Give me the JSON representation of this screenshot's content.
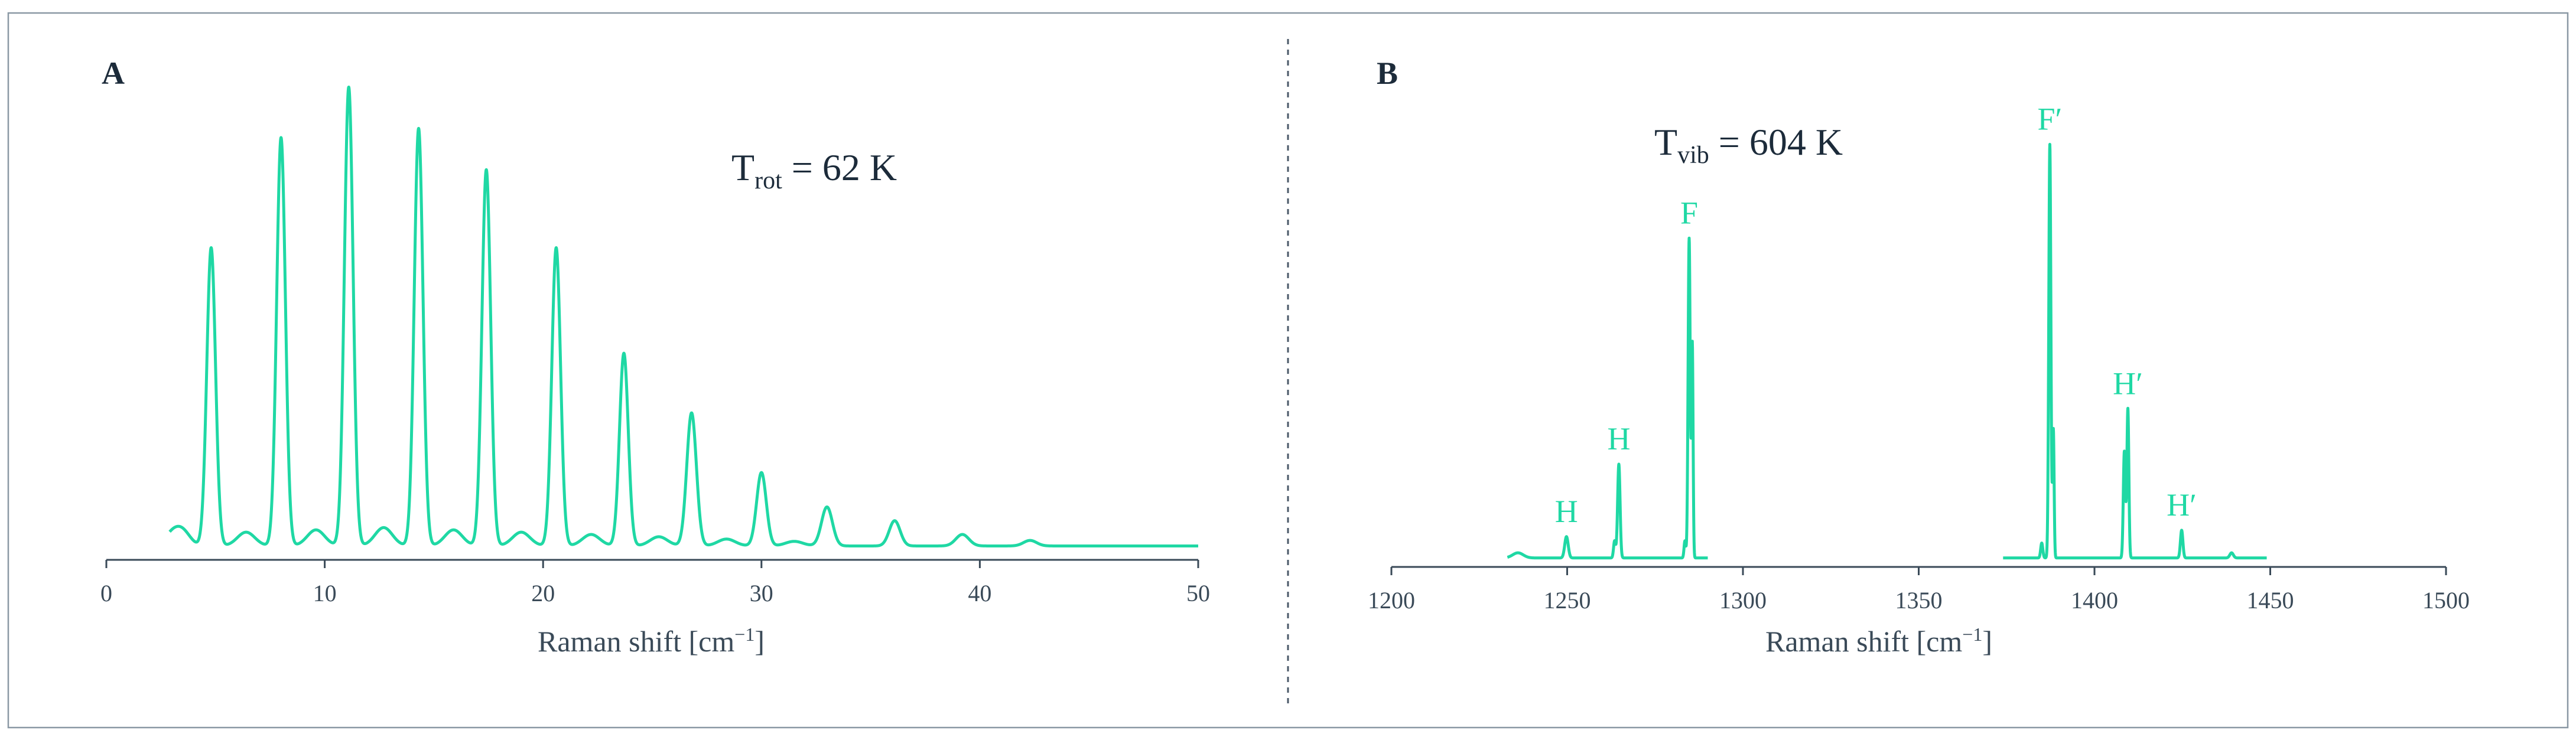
{
  "colors": {
    "trace": "#1fd8a4",
    "axis": "#3a4a58",
    "text": "#1c2b3a",
    "frame": "#8a98a4"
  },
  "chart_data": [
    {
      "type": "line",
      "panel": "A",
      "title": "",
      "xlabel_main": "Raman shift [cm",
      "xlabel_sup": "−1",
      "xlabel_close": "]",
      "xlim": [
        0,
        50
      ],
      "ylim": [
        0,
        1.0
      ],
      "x_ticks": [
        0,
        10,
        20,
        30,
        40,
        50
      ],
      "grid": false,
      "annotation": {
        "main": "T",
        "sub": "rot",
        "tail": " = 62 K"
      },
      "baseline": 0.02,
      "peaks": [
        {
          "x": 3.0,
          "y": 0.025,
          "w": 0.35
        },
        {
          "x": 3.5,
          "y": 0.03,
          "w": 0.35
        },
        {
          "x": 4.8,
          "y": 0.65,
          "w": 0.2
        },
        {
          "x": 6.4,
          "y": 0.03,
          "w": 0.4
        },
        {
          "x": 8.0,
          "y": 0.89,
          "w": 0.2
        },
        {
          "x": 9.6,
          "y": 0.035,
          "w": 0.4
        },
        {
          "x": 11.1,
          "y": 1.0,
          "w": 0.2
        },
        {
          "x": 12.7,
          "y": 0.04,
          "w": 0.4
        },
        {
          "x": 14.3,
          "y": 0.91,
          "w": 0.2
        },
        {
          "x": 15.9,
          "y": 0.035,
          "w": 0.4
        },
        {
          "x": 17.4,
          "y": 0.82,
          "w": 0.2
        },
        {
          "x": 19.0,
          "y": 0.03,
          "w": 0.4
        },
        {
          "x": 20.6,
          "y": 0.65,
          "w": 0.2
        },
        {
          "x": 22.2,
          "y": 0.025,
          "w": 0.4
        },
        {
          "x": 23.7,
          "y": 0.42,
          "w": 0.2
        },
        {
          "x": 25.3,
          "y": 0.02,
          "w": 0.4
        },
        {
          "x": 26.8,
          "y": 0.29,
          "w": 0.22
        },
        {
          "x": 28.4,
          "y": 0.015,
          "w": 0.4
        },
        {
          "x": 30.0,
          "y": 0.16,
          "w": 0.22
        },
        {
          "x": 31.5,
          "y": 0.01,
          "w": 0.4
        },
        {
          "x": 33.0,
          "y": 0.085,
          "w": 0.25
        },
        {
          "x": 36.1,
          "y": 0.055,
          "w": 0.25
        },
        {
          "x": 39.2,
          "y": 0.025,
          "w": 0.3
        },
        {
          "x": 42.3,
          "y": 0.012,
          "w": 0.3
        }
      ],
      "series_x_range": [
        2.9,
        50
      ]
    },
    {
      "type": "line",
      "panel": "B",
      "title": "",
      "xlabel_main": "Raman shift [cm",
      "xlabel_sup": "−1",
      "xlabel_close": "]",
      "xlim": [
        1200,
        1500
      ],
      "ylim": [
        0,
        1.0
      ],
      "x_ticks": [
        1200,
        1250,
        1300,
        1350,
        1400,
        1450,
        1500
      ],
      "grid": false,
      "annotation": {
        "main": "T",
        "sub": "vib",
        "tail": " = 604 K"
      },
      "baseline": 0.01,
      "peaks": [
        {
          "x": 1236,
          "y": 0.012,
          "w": 1.5
        },
        {
          "x": 1249.8,
          "y": 0.05,
          "w": 0.5
        },
        {
          "x": 1263.5,
          "y": 0.04,
          "w": 0.3
        },
        {
          "x": 1264.7,
          "y": 0.22,
          "w": 0.35
        },
        {
          "x": 1283.5,
          "y": 0.04,
          "w": 0.25
        },
        {
          "x": 1284.7,
          "y": 0.75,
          "w": 0.3
        },
        {
          "x": 1285.6,
          "y": 0.5,
          "w": 0.22
        },
        {
          "x": 1385,
          "y": 0.035,
          "w": 0.3
        },
        {
          "x": 1387.3,
          "y": 0.97,
          "w": 0.3
        },
        {
          "x": 1388.3,
          "y": 0.3,
          "w": 0.22
        },
        {
          "x": 1408.5,
          "y": 0.25,
          "w": 0.3
        },
        {
          "x": 1409.5,
          "y": 0.35,
          "w": 0.28
        },
        {
          "x": 1424.8,
          "y": 0.065,
          "w": 0.35
        },
        {
          "x": 1439,
          "y": 0.012,
          "w": 0.5
        }
      ],
      "segments": [
        [
          1233,
          1290
        ],
        [
          1374,
          1449
        ]
      ],
      "peak_labels": [
        {
          "text": "H",
          "x": 1249.8,
          "y": 0.05
        },
        {
          "text": "H",
          "x": 1264.7,
          "y": 0.22
        },
        {
          "text": "F",
          "x": 1284.7,
          "y": 0.75
        },
        {
          "text": "F′",
          "x": 1387.3,
          "y": 0.97
        },
        {
          "text": "H′",
          "x": 1409.5,
          "y": 0.35
        },
        {
          "text": "H′",
          "x": 1424.8,
          "y": 0.065
        }
      ]
    }
  ]
}
